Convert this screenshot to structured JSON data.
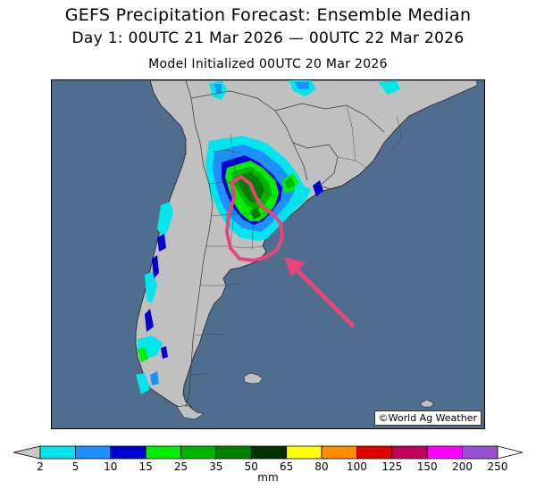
{
  "title": "GEFS Precipitation Forecast: Ensemble Median",
  "period": "Day 1: 00UTC 21 Mar 2026 — 00UTC 22 Mar 2026",
  "init": "Model Initialized 00UTC 20 Mar 2026",
  "credit": "©World Ag Weather",
  "legend": {
    "unit": "mm",
    "ticks": [
      "2",
      "5",
      "10",
      "15",
      "25",
      "35",
      "50",
      "65",
      "80",
      "100",
      "125",
      "150",
      "200",
      "250"
    ],
    "colors": [
      "#00e5ee",
      "#1e90ff",
      "#0000cd",
      "#00ee00",
      "#00b400",
      "#008000",
      "#003000",
      "#ffff00",
      "#ff8c00",
      "#e00000",
      "#c0005a",
      "#ff00ff",
      "#9a4fd2"
    ]
  },
  "map_colors": {
    "ocean": "#4f6d8f",
    "land": "#c0c0c0",
    "highlight_outline": "#e8457a",
    "arrow": "#e8457a"
  }
}
